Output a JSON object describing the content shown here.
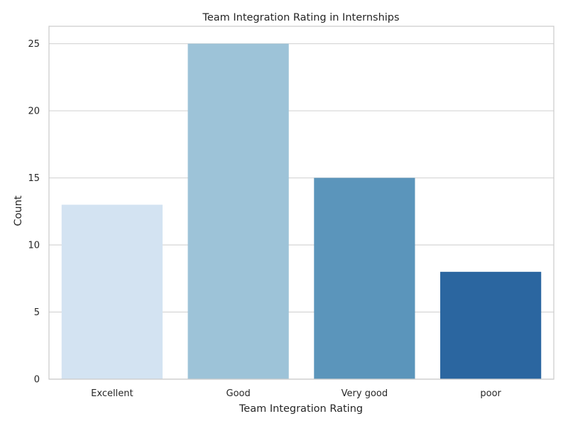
{
  "chart_data": {
    "type": "bar",
    "title": "Team Integration Rating in Internships",
    "xlabel": "Team Integration Rating",
    "ylabel": "Count",
    "categories": [
      "Excellent",
      "Good",
      "Very good",
      "poor"
    ],
    "values": [
      13,
      25,
      15,
      8
    ],
    "ylim": [
      0,
      26.3
    ],
    "yticks": [
      0,
      5,
      10,
      15,
      20,
      25
    ],
    "grid": true,
    "colors": [
      "#d3e3f2",
      "#9dc3d8",
      "#5b95bb",
      "#2b66a0"
    ],
    "grid_color": "#d5d5d5",
    "axis_color": "#cccccc"
  }
}
